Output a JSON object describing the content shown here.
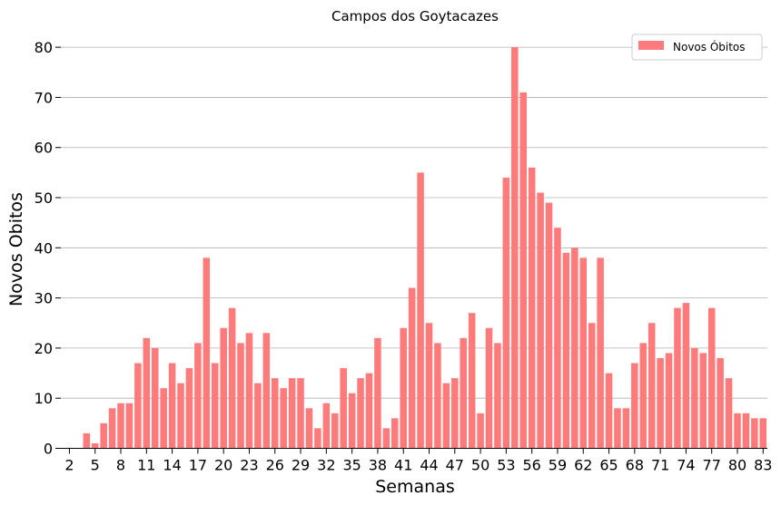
{
  "chart_data": {
    "type": "bar",
    "title": "Campos dos Goytacazes",
    "xlabel": "Semanas",
    "ylabel": "Novos Obitos",
    "legend": {
      "label": "Novos Óbitos",
      "placement": "top-right"
    },
    "color": "#ff7b7b",
    "grid": "y",
    "ylim": [
      0,
      84
    ],
    "yticks": [
      0,
      10,
      20,
      30,
      40,
      50,
      60,
      70,
      80
    ],
    "xlim": [
      1,
      83.5
    ],
    "xticks": [
      2,
      5,
      8,
      11,
      14,
      17,
      20,
      23,
      26,
      29,
      32,
      35,
      38,
      41,
      44,
      47,
      50,
      53,
      56,
      59,
      62,
      65,
      68,
      71,
      74,
      77,
      80,
      83
    ],
    "x": [
      4,
      5,
      6,
      7,
      8,
      9,
      10,
      11,
      12,
      13,
      14,
      15,
      16,
      17,
      18,
      19,
      20,
      21,
      22,
      23,
      24,
      25,
      26,
      27,
      28,
      29,
      30,
      31,
      32,
      33,
      34,
      35,
      36,
      37,
      38,
      39,
      40,
      41,
      42,
      43,
      44,
      45,
      46,
      47,
      48,
      49,
      50,
      51,
      52,
      53,
      54,
      55,
      56,
      57,
      58,
      59,
      60,
      61,
      62,
      63,
      64,
      65,
      66,
      67,
      68,
      69,
      70,
      71,
      72,
      73,
      74,
      75,
      76,
      77,
      78,
      79,
      80,
      81,
      82,
      83
    ],
    "values": [
      3,
      1,
      5,
      8,
      9,
      9,
      17,
      22,
      20,
      12,
      17,
      13,
      16,
      21,
      38,
      17,
      24,
      28,
      21,
      23,
      13,
      23,
      14,
      12,
      14,
      14,
      8,
      4,
      9,
      7,
      16,
      11,
      14,
      15,
      22,
      4,
      6,
      24,
      32,
      55,
      25,
      21,
      13,
      14,
      22,
      27,
      7,
      24,
      21,
      54,
      80,
      71,
      56,
      51,
      49,
      44,
      39,
      40,
      38,
      25,
      38,
      15,
      8,
      8,
      17,
      21,
      25,
      18,
      19,
      28,
      29,
      20,
      19,
      28,
      18,
      14,
      7,
      7,
      6,
      6
    ]
  }
}
